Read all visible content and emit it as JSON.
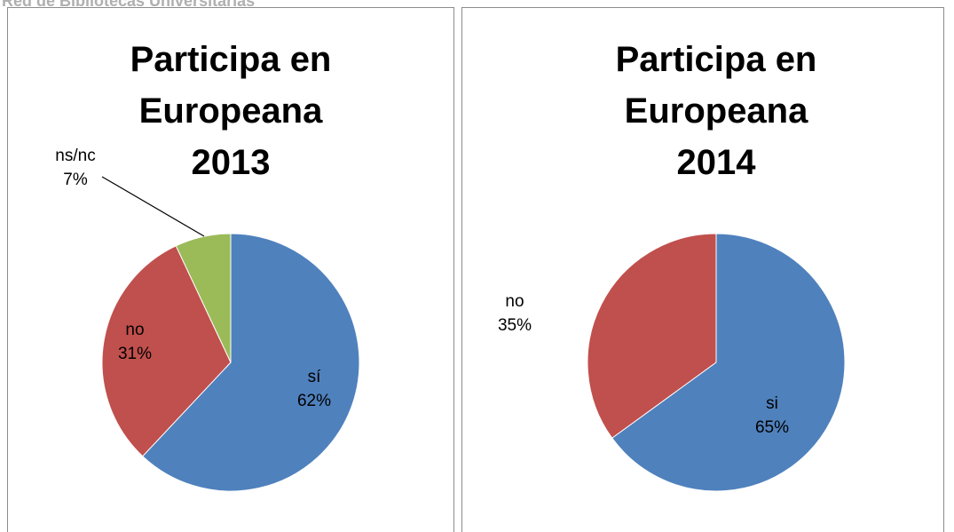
{
  "header": "Red de Bibliotecas Universitarias",
  "chart_data": [
    {
      "type": "pie",
      "title": "Participa en Europeana 2013",
      "categories": [
        "sí",
        "no",
        "ns/nc"
      ],
      "values": [
        62,
        31,
        7
      ],
      "value_labels": [
        "62%",
        "31%",
        "7%"
      ],
      "colors": [
        "#4f81bd",
        "#c0504d",
        "#9bbb59"
      ]
    },
    {
      "type": "pie",
      "title": "Participa en Europeana 2014",
      "categories": [
        "si",
        "no"
      ],
      "values": [
        65,
        35
      ],
      "value_labels": [
        "65%",
        "35%"
      ],
      "colors": [
        "#4f81bd",
        "#c0504d"
      ]
    }
  ]
}
